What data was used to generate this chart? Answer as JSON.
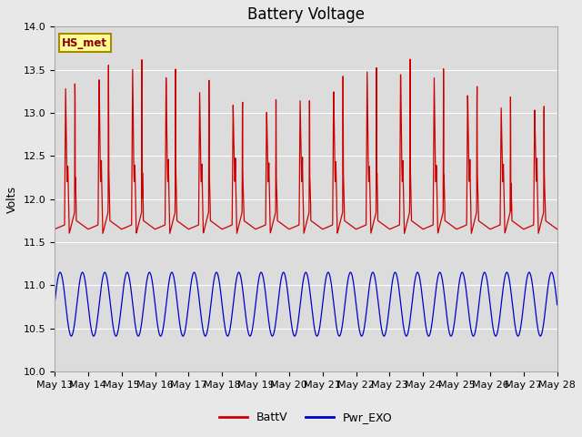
{
  "title": "Battery Voltage",
  "ylabel": "Volts",
  "ylim": [
    10.0,
    14.0
  ],
  "yticks": [
    10.0,
    10.5,
    11.0,
    11.5,
    12.0,
    12.5,
    13.0,
    13.5,
    14.0
  ],
  "xlabel_dates": [
    "May 13",
    "May 14",
    "May 15",
    "May 16",
    "May 17",
    "May 18",
    "May 19",
    "May 20",
    "May 21",
    "May 22",
    "May 23",
    "May 24",
    "May 25",
    "May 26",
    "May 27",
    "May 28"
  ],
  "batt_color": "#cc0000",
  "exo_color": "#0000cc",
  "fig_bg_color": "#e8e8e8",
  "plot_bg_color": "#dcdcdc",
  "legend_label_batt": "BattV",
  "legend_label_exo": "Pwr_EXO",
  "annotation_text": "HS_met",
  "annotation_bg": "#ffff99",
  "annotation_border": "#aa8800",
  "title_fontsize": 12,
  "axis_fontsize": 9,
  "tick_fontsize": 8
}
